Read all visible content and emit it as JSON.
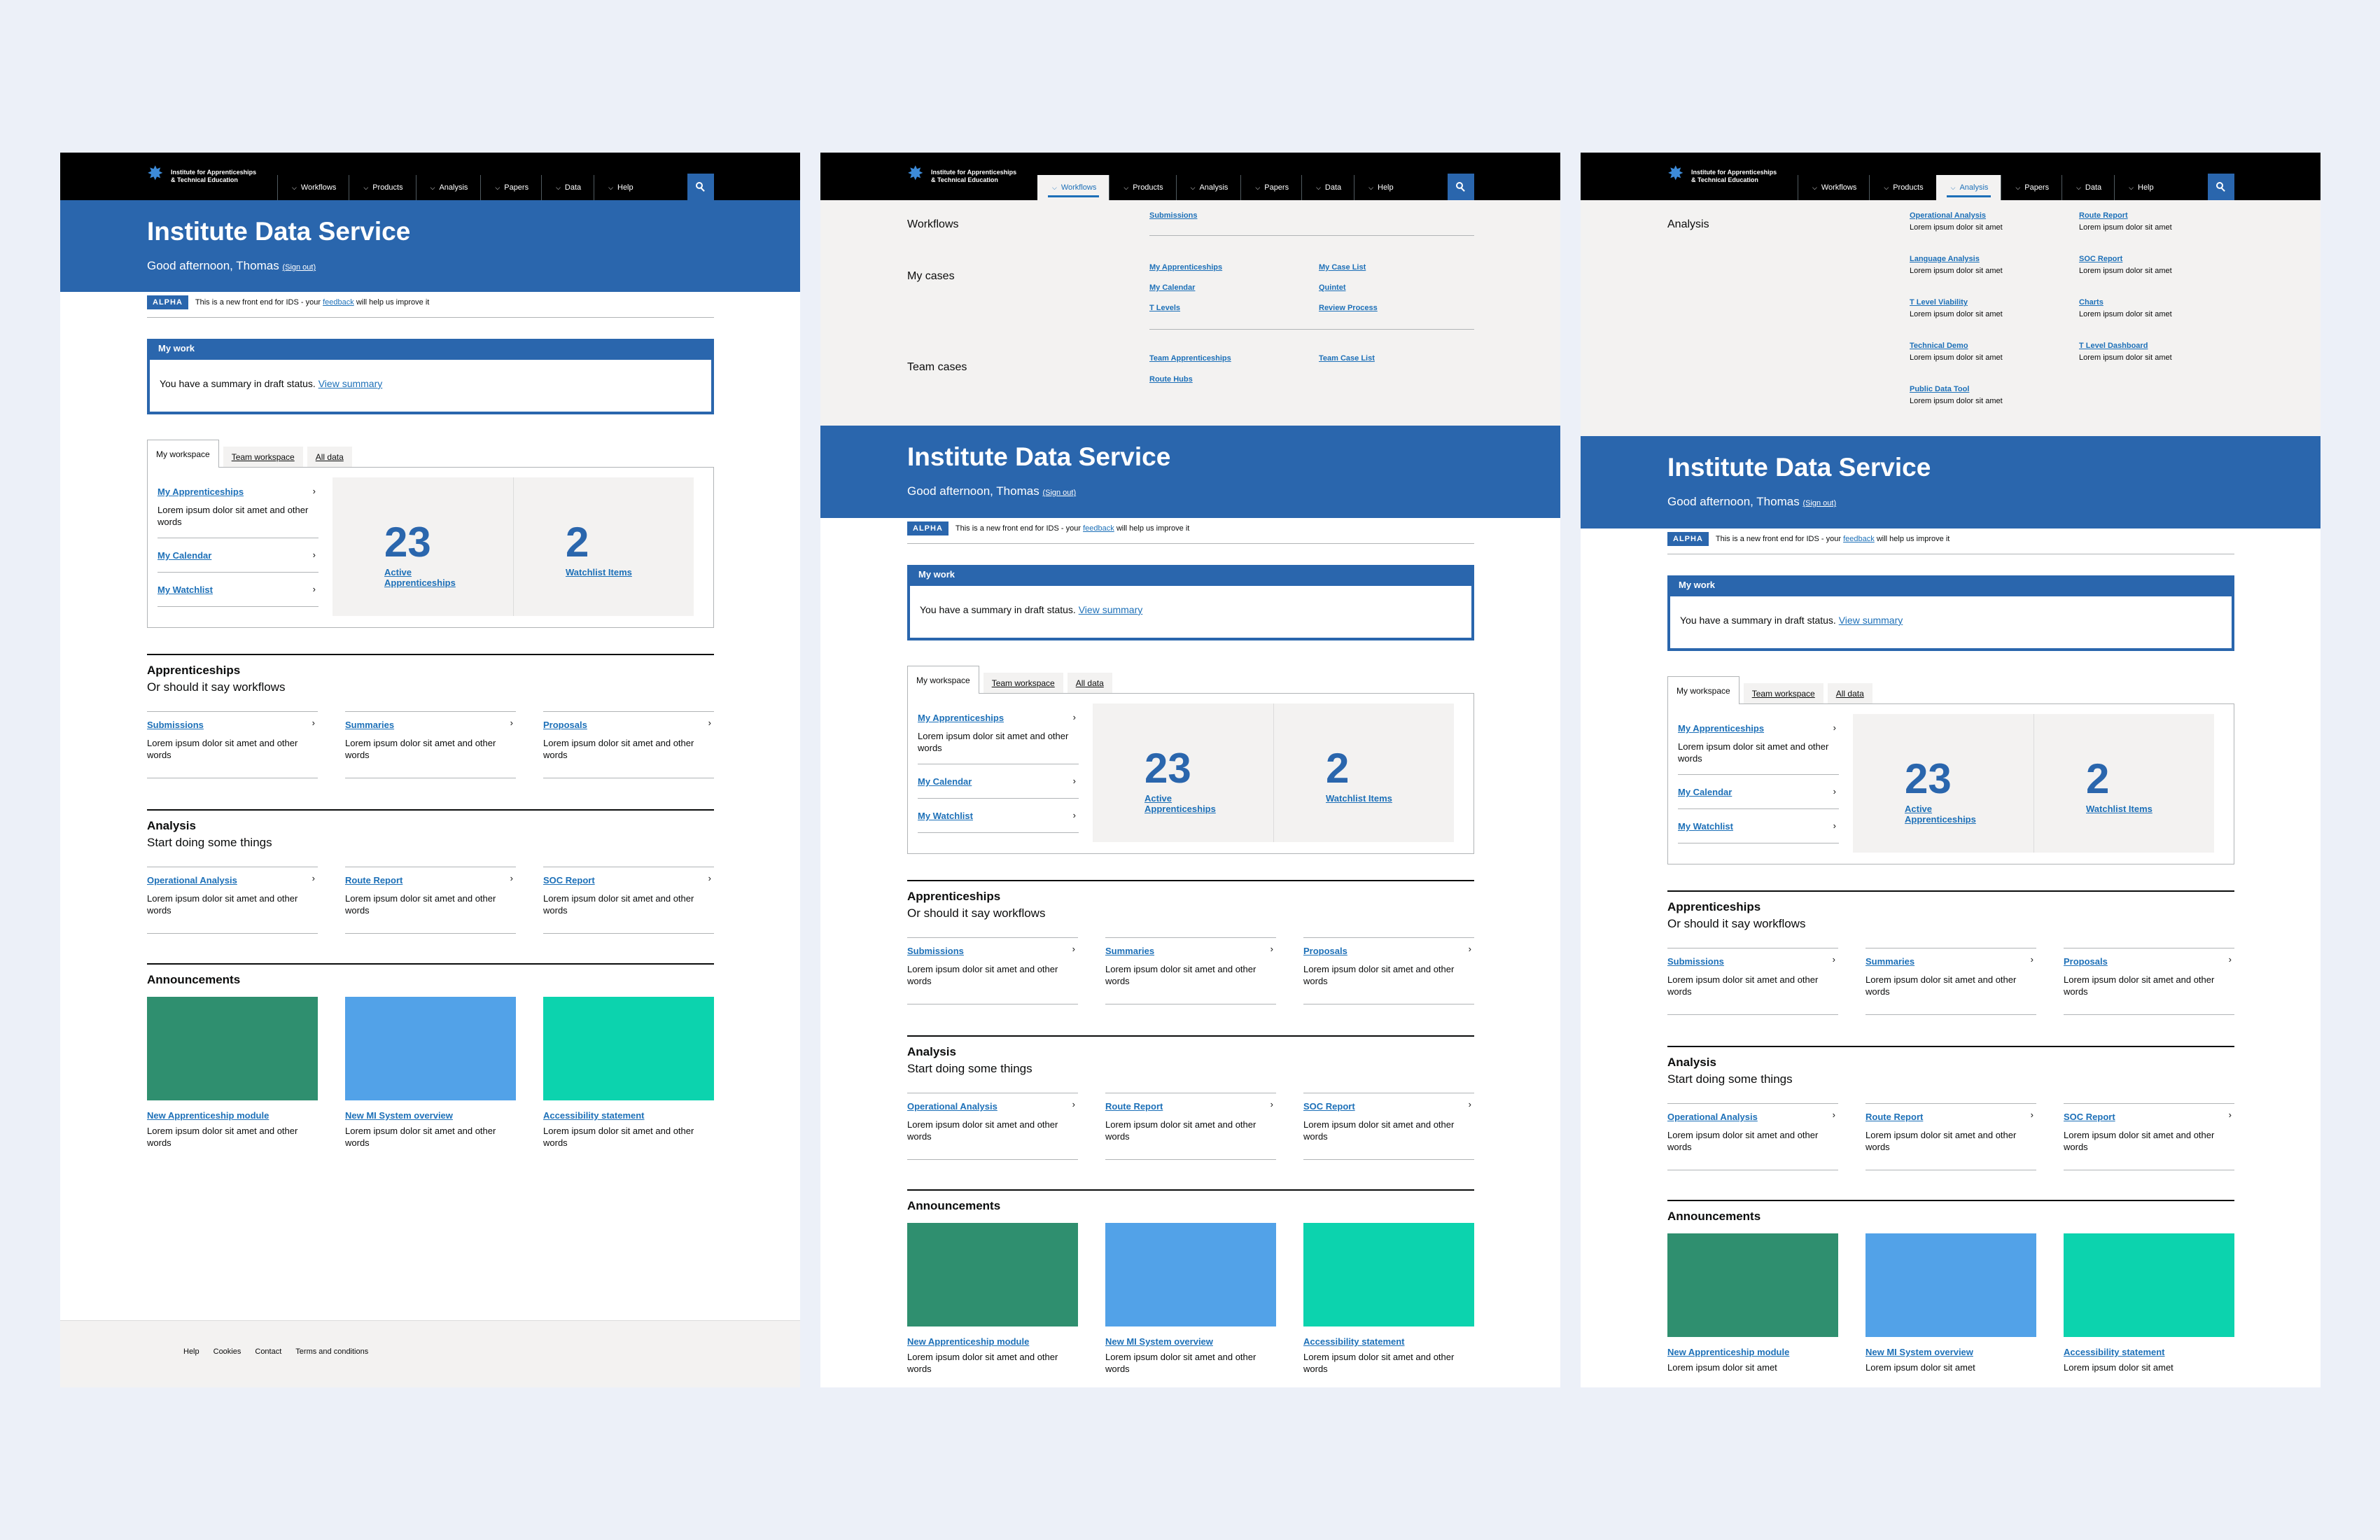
{
  "colors": {
    "background": "#ecf0f8",
    "hero": "#2a66ad",
    "link": "#1d70b8",
    "ann_green": "#2f8f6f",
    "ann_blue": "#52a2e8",
    "ann_teal": "#0cd3ae"
  },
  "header": {
    "logo_line1": "Institute for Apprenticeships",
    "logo_line2": "& Technical Education",
    "logo_icon": "star-icon",
    "nav": [
      "Workflows",
      "Products",
      "Analysis",
      "Papers",
      "Data",
      "Help"
    ],
    "search_icon": "search-icon"
  },
  "mega_workflows": {
    "workflows_label": "Workflows",
    "submissions": "Submissions",
    "my_cases_label": "My cases",
    "my_apprenticeships": "My Apprenticeships",
    "my_calendar": "My Calendar",
    "t_levels": "T Levels",
    "my_case_list": "My Case List",
    "quintet": "Quintet",
    "review_process": "Review Process",
    "team_cases_label": "Team cases",
    "team_apprenticeships": "Team Apprenticeships",
    "route_hubs": "Route Hubs",
    "team_case_list": "Team Case List"
  },
  "mega_analysis": {
    "label": "Analysis",
    "desc": "Lorem ipsum dolor sit amet",
    "items": [
      "Operational Analysis",
      "Route Report",
      "Language Analysis",
      "SOC Report",
      "T Level Viability",
      "Charts",
      "Technical Demo",
      "T Level Dashboard",
      "Public Data Tool"
    ]
  },
  "hero": {
    "title": "Institute Data Service",
    "greeting": "Good afternoon, Thomas",
    "sign_out": "(Sign out)"
  },
  "phase": {
    "tag": "ALPHA",
    "text_before": "This is a new front end for IDS - your",
    "feedback": "feedback",
    "text_after": "will help us improve it"
  },
  "my_work": {
    "heading": "My work",
    "text": "You have a summary in draft status.",
    "link": "View summary"
  },
  "tabs": [
    "My workspace",
    "Team workspace",
    "All data"
  ],
  "workspace": {
    "my_apprenticeships": "My Apprenticeships",
    "my_apprenticeships_desc": "Lorem ipsum dolor sit amet and other words",
    "my_calendar": "My Calendar",
    "my_watchlist": "My Watchlist",
    "active_count": "23",
    "active_label": "Active Apprenticeships",
    "watch_count": "2",
    "watch_label": "Watchlist Items"
  },
  "apprenticeships": {
    "title": "Apprenticeships",
    "subtitle": "Or should it say workflows",
    "cards": [
      "Submissions",
      "Summaries",
      "Proposals"
    ]
  },
  "analysis": {
    "title": "Analysis",
    "subtitle": "Start doing some things",
    "cards": [
      "Operational Analysis",
      "Route Report",
      "SOC Report"
    ]
  },
  "card_desc": "Lorem ipsum dolor sit amet and other words",
  "card_desc_line1": "Lorem ipsum dolor sit amet",
  "announcements": {
    "title": "Announcements",
    "items": [
      "New Apprenticeship module",
      "New MI System overview",
      "Accessibility statement"
    ]
  },
  "footer": [
    "Help",
    "Cookies",
    "Contact",
    "Terms and conditions"
  ]
}
